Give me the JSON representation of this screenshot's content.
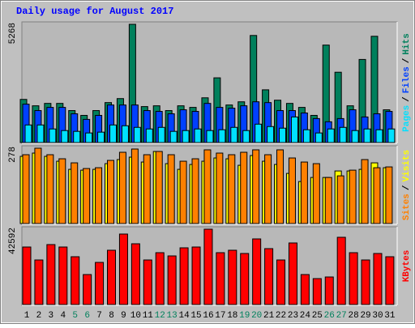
{
  "chart_data": {
    "type": "bar",
    "title": "Daily usage for August 2017",
    "categories": [
      "1",
      "2",
      "3",
      "4",
      "5",
      "6",
      "7",
      "8",
      "9",
      "10",
      "11",
      "12",
      "13",
      "14",
      "15",
      "16",
      "17",
      "18",
      "19",
      "20",
      "21",
      "22",
      "23",
      "24",
      "25",
      "26",
      "27",
      "28",
      "29",
      "30",
      "31"
    ],
    "category_colors": [
      "#000000",
      "#000000",
      "#000000",
      "#000000",
      "#00805c",
      "#00805c",
      "#000000",
      "#000000",
      "#000000",
      "#000000",
      "#000000",
      "#00805c",
      "#00805c",
      "#000000",
      "#000000",
      "#000000",
      "#000000",
      "#000000",
      "#00805c",
      "#00805c",
      "#000000",
      "#000000",
      "#000000",
      "#000000",
      "#000000",
      "#00805c",
      "#00805c",
      "#000000",
      "#000000",
      "#000000",
      "#000000"
    ],
    "legend_separator": "/",
    "panels": [
      {
        "ylim": [
          0,
          5268
        ],
        "yticks": [
          5268
        ],
        "series": [
          {
            "name": "Pages",
            "color": "#00e0ff",
            "values": [
              783,
              783,
              605,
              534,
              498,
              427,
              463,
              783,
              748,
              676,
              605,
              676,
              498,
              534,
              605,
              534,
              570,
              676,
              534,
              819,
              712,
              641,
              1139,
              570,
              427,
              605,
              676,
              534,
              605,
              570,
              605
            ]
          },
          {
            "name": "Files",
            "color": "#0040ff",
            "values": [
              1709,
              1424,
              1566,
              1566,
              1282,
              1032,
              1210,
              1673,
              1673,
              1673,
              1424,
              1388,
              1282,
              1460,
              1388,
              1744,
              1566,
              1531,
              1638,
              1816,
              1780,
              1424,
              1424,
              1317,
              1068,
              926,
              1068,
              1460,
              1139,
              1282,
              1388
            ]
          },
          {
            "name": "Hits",
            "color": "#00805c",
            "values": [
              1922,
              1637,
              1744,
              1744,
              1424,
              1210,
              1424,
              1780,
              1958,
              5268,
              1602,
              1637,
              1424,
              1637,
              1566,
              1993,
              2883,
              1673,
              1815,
              4770,
              2349,
              1886,
              1744,
              1566,
              1210,
              4342,
              3132,
              1637,
              3702,
              4734,
              1459
            ]
          }
        ]
      },
      {
        "ylim": [
          0,
          278
        ],
        "yticks": [
          278
        ],
        "series": [
          {
            "name": "Sites",
            "color": "#ff8000",
            "values": [
              254,
              278,
              254,
              239,
              224,
              203,
              206,
              233,
              263,
              275,
              254,
              266,
              254,
              230,
              239,
              272,
              260,
              254,
              263,
              272,
              254,
              272,
              242,
              227,
              221,
              170,
              176,
              197,
              236,
              206,
              209
            ]
          },
          {
            "name": "Visits",
            "color": "#ffff00",
            "values": [
              248,
              260,
              248,
              230,
              200,
              197,
              200,
              221,
              236,
              245,
              227,
              266,
              221,
              200,
              218,
              230,
              242,
              239,
              215,
              251,
              230,
              218,
              185,
              155,
              170,
              170,
              194,
              194,
              200,
              224,
              206
            ]
          }
        ]
      },
      {
        "ylim": [
          0,
          42592
        ],
        "yticks": [
          42592
        ],
        "series": [
          {
            "name": "KBytes",
            "color": "#ff0000",
            "values": [
              32518,
              25190,
              33892,
              32518,
              27022,
              16946,
              23816,
              30686,
              39846,
              34350,
              25190,
              29312,
              27480,
              32060,
              32518,
              42592,
              29312,
              30686,
              28854,
              37098,
              31602,
              25190,
              34808,
              16946,
              14656,
              15572,
              38014,
              29312,
              25190,
              28854,
              27022
            ]
          }
        ]
      }
    ]
  }
}
